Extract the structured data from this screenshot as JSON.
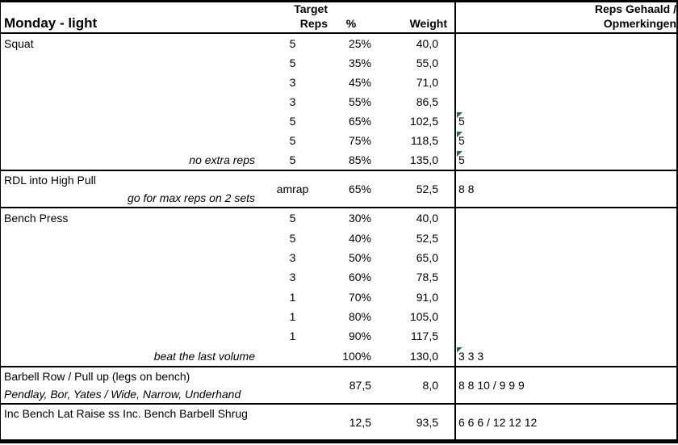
{
  "header": {
    "title": "Monday - light",
    "target_line1": "Target",
    "target_line2": "Reps",
    "percent": "%",
    "weight": "Weight",
    "results_line1": "Reps Gehaald /",
    "results_line2": "Opmerkingen"
  },
  "squat": {
    "title": "Squat",
    "note": "no extra reps",
    "rows": [
      {
        "reps": "5",
        "pct": "25%",
        "wt": "40,0",
        "res": ""
      },
      {
        "reps": "5",
        "pct": "35%",
        "wt": "55,0",
        "res": ""
      },
      {
        "reps": "3",
        "pct": "45%",
        "wt": "71,0",
        "res": ""
      },
      {
        "reps": "3",
        "pct": "55%",
        "wt": "86,5",
        "res": ""
      },
      {
        "reps": "5",
        "pct": "65%",
        "wt": "102,5",
        "res": "5"
      },
      {
        "reps": "5",
        "pct": "75%",
        "wt": "118,5",
        "res": "5"
      },
      {
        "reps": "5",
        "pct": "85%",
        "wt": "135,0",
        "res": "5"
      }
    ]
  },
  "rdl": {
    "title": "RDL into High Pull",
    "note": "go for max reps on 2 sets",
    "reps": "amrap",
    "pct": "65%",
    "wt": "52,5",
    "res": "8 8"
  },
  "bench": {
    "title": "Bench Press",
    "note": "beat the last volume",
    "rows": [
      {
        "reps": "5",
        "pct": "30%",
        "wt": "40,0",
        "res": ""
      },
      {
        "reps": "5",
        "pct": "40%",
        "wt": "52,5",
        "res": ""
      },
      {
        "reps": "3",
        "pct": "50%",
        "wt": "65,0",
        "res": ""
      },
      {
        "reps": "3",
        "pct": "60%",
        "wt": "78,5",
        "res": ""
      },
      {
        "reps": "1",
        "pct": "70%",
        "wt": "91,0",
        "res": ""
      },
      {
        "reps": "1",
        "pct": "80%",
        "wt": "105,0",
        "res": ""
      },
      {
        "reps": "1",
        "pct": "90%",
        "wt": "117,5",
        "res": ""
      },
      {
        "reps": "",
        "pct": "100%",
        "wt": "130,0",
        "res": "3 3 3"
      }
    ]
  },
  "barbell": {
    "title": "Barbell Row / Pull up (legs on bench)",
    "subtitle": "Pendlay, Bor, Yates / Wide, Narrow, Underhand",
    "pct": "87,5",
    "wt": "8,0",
    "res": "8 8 10 / 9 9 9"
  },
  "incbench": {
    "title": "Inc Bench Lat Raise ss Inc. Bench Barbell Shrug",
    "pct": "12,5",
    "wt": "93,5",
    "res": "6 6 6 / 12 12 12"
  },
  "colors": {
    "flag_green": "#1E7145",
    "border": "#000000",
    "background": "#FFFFFF",
    "text": "#000000"
  }
}
